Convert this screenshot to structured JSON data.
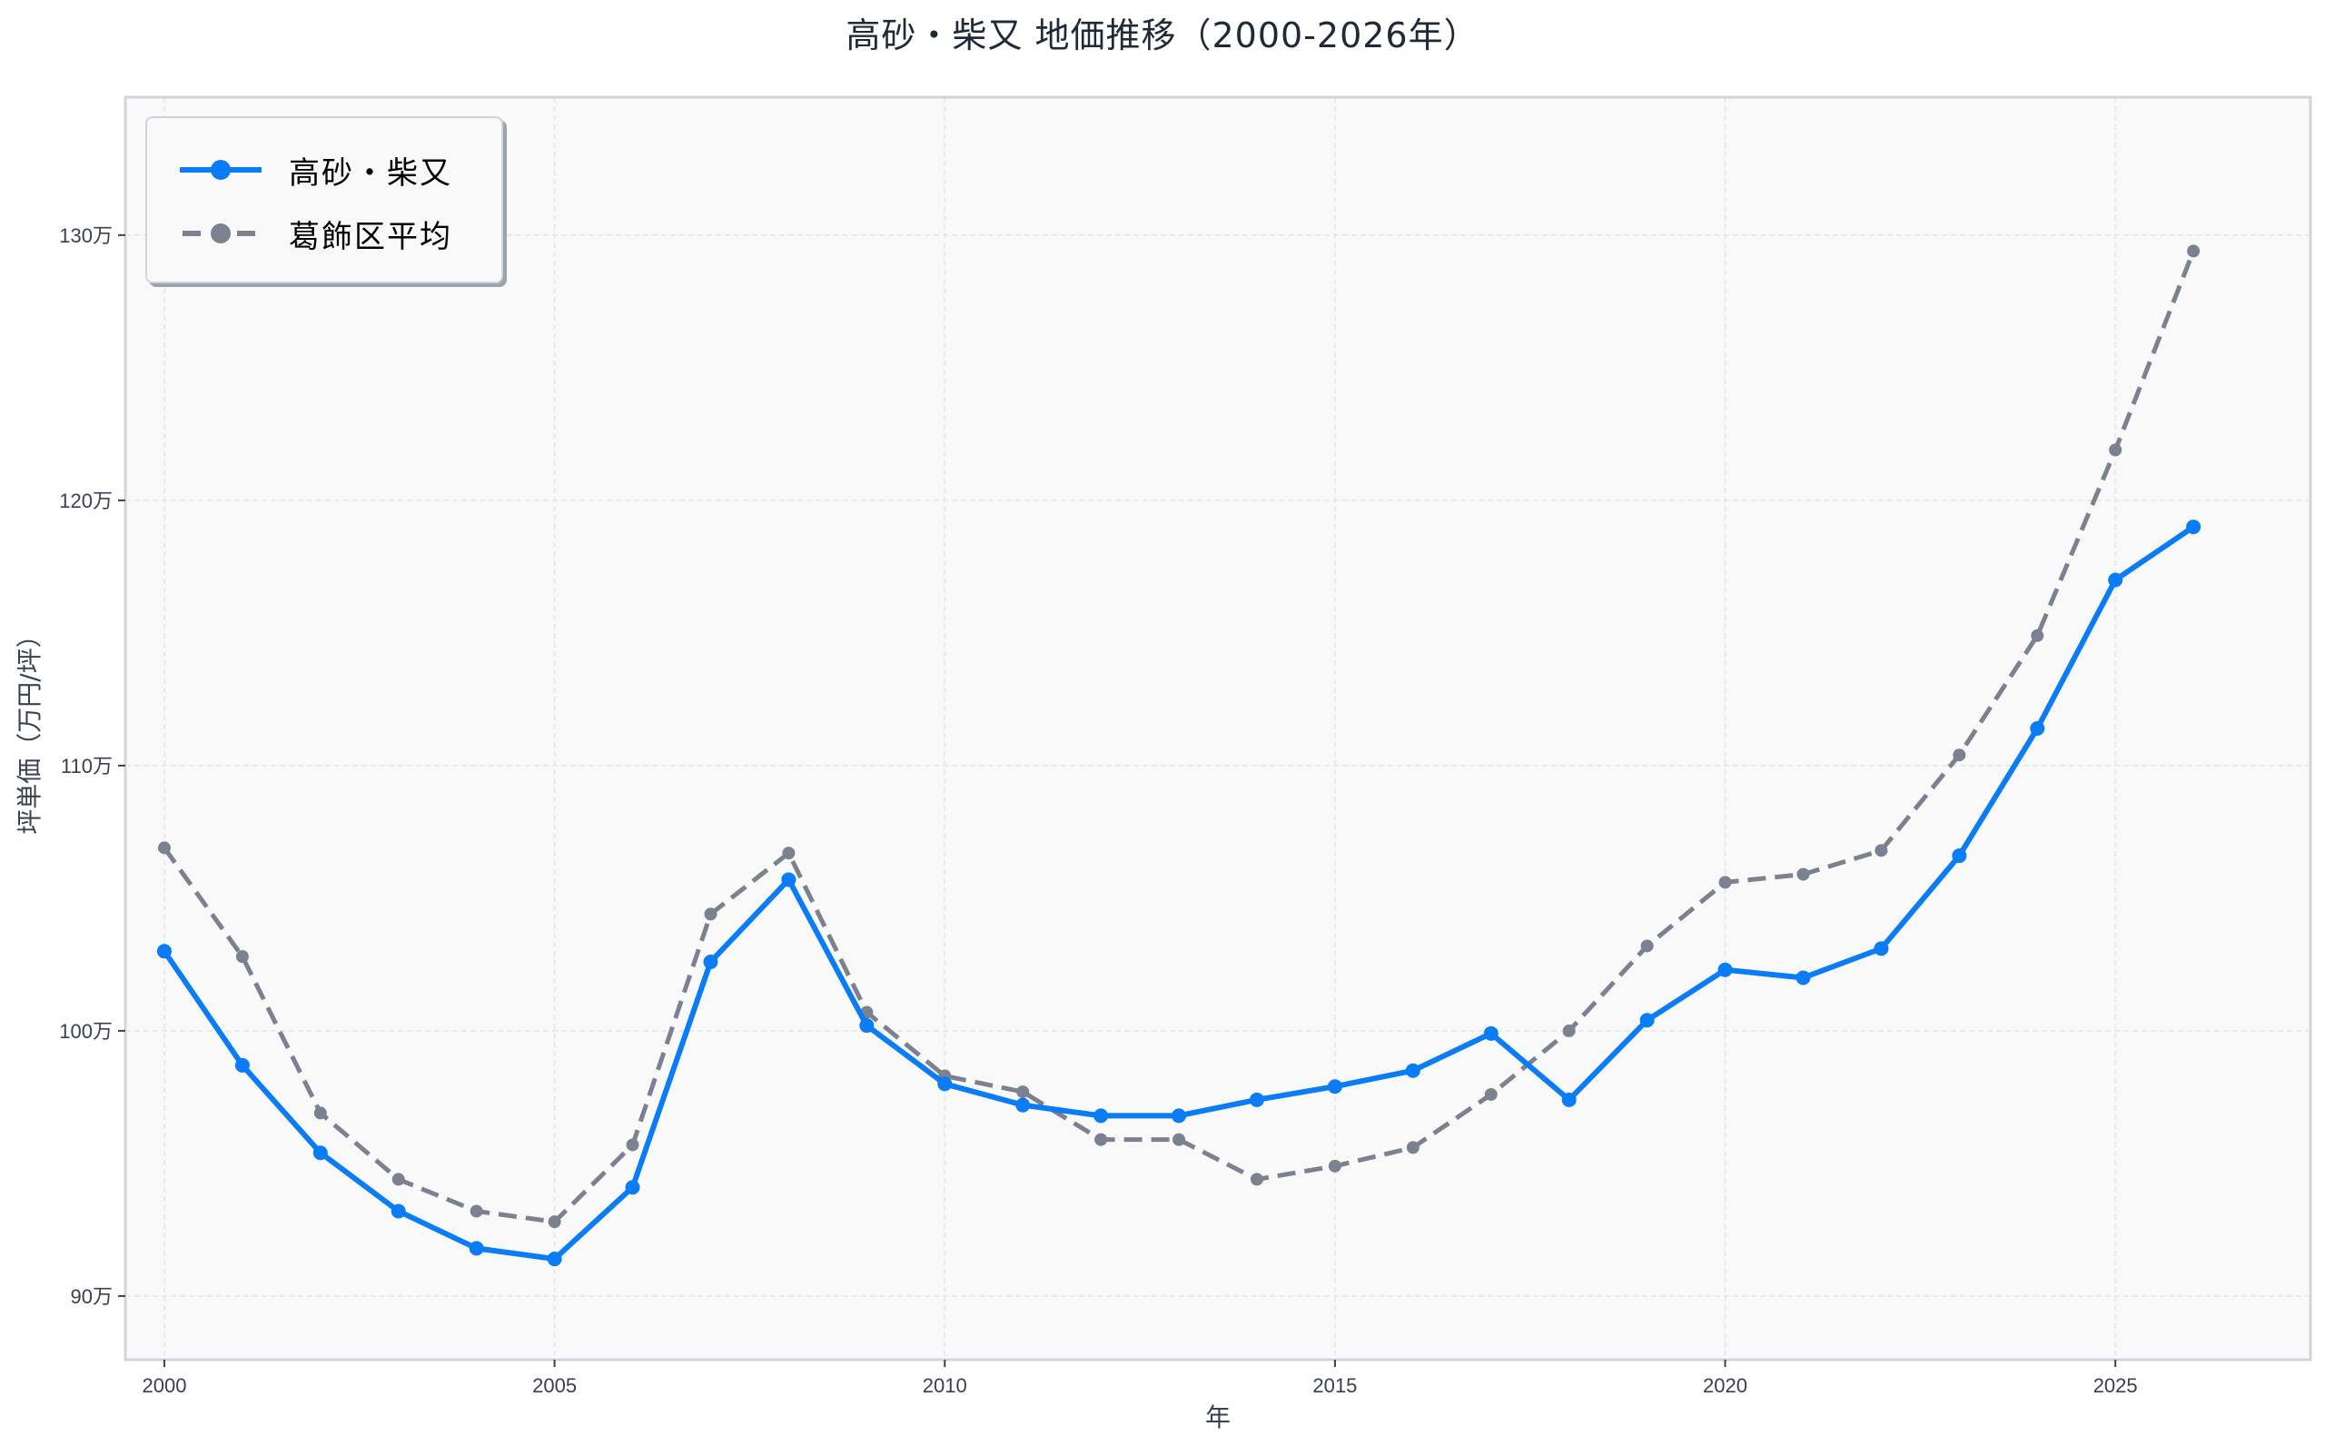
{
  "chart_data": {
    "type": "line",
    "title": "高砂・柴又 地価推移（2000-2026年）",
    "xlabel": "年",
    "ylabel": "坪単価（万円/坪）",
    "x": [
      2000,
      2001,
      2002,
      2003,
      2004,
      2005,
      2006,
      2007,
      2008,
      2009,
      2010,
      2011,
      2012,
      2013,
      2014,
      2015,
      2016,
      2017,
      2018,
      2019,
      2020,
      2021,
      2022,
      2023,
      2024,
      2025,
      2026
    ],
    "series": [
      {
        "name": "高砂・柴又",
        "color": "#0a7cf5",
        "style": "solid",
        "marker": "circle",
        "values": [
          103.0,
          98.7,
          95.4,
          93.2,
          91.8,
          91.4,
          94.1,
          102.6,
          105.7,
          100.2,
          98.0,
          97.2,
          96.8,
          96.8,
          97.4,
          97.9,
          98.5,
          99.9,
          97.4,
          100.4,
          102.3,
          102.0,
          103.1,
          106.6,
          111.4,
          117.0,
          119.0
        ]
      },
      {
        "name": "葛飾区平均",
        "color": "#7c8190",
        "style": "dashed",
        "marker": "circle",
        "values": [
          106.9,
          102.8,
          96.9,
          94.4,
          93.2,
          92.8,
          95.7,
          104.4,
          106.7,
          100.7,
          98.3,
          97.7,
          95.9,
          95.9,
          94.4,
          94.9,
          95.6,
          97.6,
          100.0,
          103.2,
          105.6,
          105.9,
          106.8,
          110.4,
          114.9,
          121.9,
          129.4
        ]
      }
    ],
    "xticks": [
      2000,
      2005,
      2010,
      2015,
      2020,
      2025
    ],
    "xtick_labels": [
      "2000",
      "2005",
      "2010",
      "2015",
      "2020",
      "2025"
    ],
    "yticks": [
      90,
      100,
      110,
      120,
      130
    ],
    "ytick_labels": [
      "90万",
      "100万",
      "110万",
      "120万",
      "130万"
    ],
    "xlim": [
      1999.5,
      2027.5
    ],
    "ylim": [
      87.6,
      135.2
    ],
    "grid": true,
    "legend_position": "upper left",
    "unit": "万円/坪"
  },
  "legend": {
    "items": [
      {
        "label": "高砂・柴又"
      },
      {
        "label": "葛飾区平均"
      }
    ]
  }
}
